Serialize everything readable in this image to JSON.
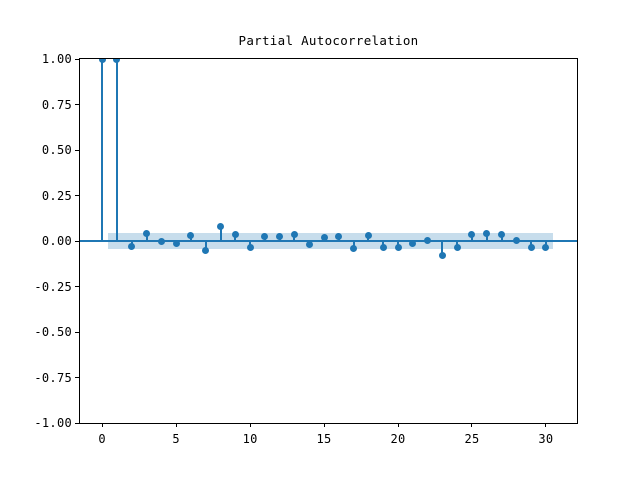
{
  "chart_data": {
    "type": "stem",
    "title": "Partial Autocorrelation",
    "x": [
      0,
      1,
      2,
      3,
      4,
      5,
      6,
      7,
      8,
      9,
      10,
      11,
      12,
      13,
      14,
      15,
      16,
      17,
      18,
      19,
      20,
      21,
      22,
      23,
      24,
      25,
      26,
      27,
      28,
      29,
      30
    ],
    "values": [
      1.0,
      0.995,
      -0.028,
      0.043,
      -0.004,
      -0.016,
      0.028,
      -0.051,
      0.077,
      0.038,
      -0.035,
      0.026,
      0.026,
      0.036,
      -0.02,
      0.02,
      0.023,
      -0.04,
      0.03,
      -0.033,
      -0.033,
      -0.014,
      0.004,
      -0.082,
      -0.038,
      0.033,
      0.043,
      0.033,
      0.002,
      -0.035,
      -0.035
    ],
    "confidence_band": {
      "lower": -0.046,
      "upper": 0.046,
      "x_start": 0.42,
      "x_end": 30.5
    },
    "xlim": [
      -1.5,
      32.1
    ],
    "ylim": [
      -1.0,
      1.0
    ],
    "xticks": [
      0,
      5,
      10,
      15,
      20,
      25,
      30
    ],
    "xtick_labels": [
      "0",
      "5",
      "10",
      "15",
      "20",
      "25",
      "30"
    ],
    "yticks": [
      1.0,
      0.75,
      0.5,
      0.25,
      0.0,
      -0.25,
      -0.5,
      -0.75,
      -1.0
    ],
    "ytick_labels": [
      "1.00",
      "0.75",
      "0.50",
      "0.25",
      "0.00",
      "-0.25",
      "-0.50",
      "-0.75",
      "-1.00"
    ],
    "legend": null,
    "grid": false,
    "colors": {
      "stem": "#1f77b4",
      "marker": "#1f77b4",
      "zero_line": "#1f77b4",
      "band": "#c7ddec",
      "axis": "#000000",
      "background": "#ffffff"
    }
  }
}
